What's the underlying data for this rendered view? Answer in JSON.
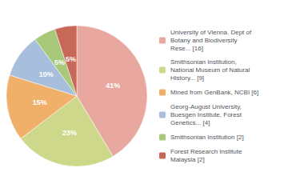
{
  "chart_data": {
    "type": "pie",
    "categories": [
      "University of Vienna. Dept of\nBotany and Biodiversity\nRese... [16]",
      "Smithsonian Institution,\nNational Museum of Natural\nHistory... [9]",
      "Mined from GenBank, NCBI [6]",
      "Georg-August University,\nBuesgen Institute, Forest\nGenetics... [4]",
      "Smithsonian Institution [2]",
      "Forest Research Institute\nMalaysia [2]"
    ],
    "values": [
      41,
      23,
      15,
      10,
      5,
      5
    ],
    "value_labels": [
      "41%",
      "23%",
      "15%",
      "10%",
      "5%",
      "5%"
    ],
    "colors": [
      "#e8a8a0",
      "#cdd88a",
      "#f0b06a",
      "#a8bedd",
      "#a8c87a",
      "#c86858"
    ],
    "data_labels": true,
    "legend": "right"
  }
}
